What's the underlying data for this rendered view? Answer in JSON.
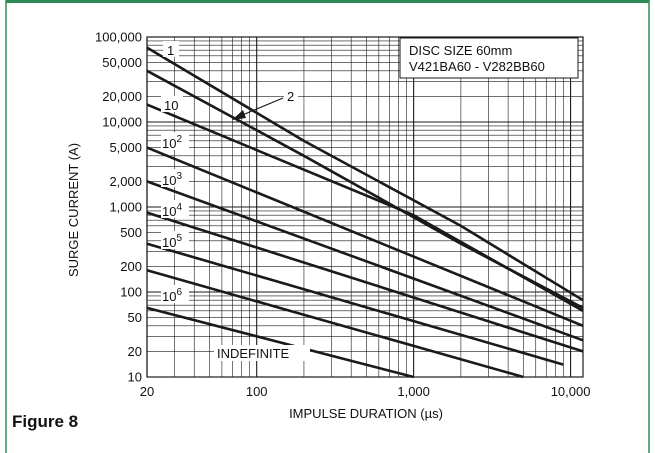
{
  "figure_label": "Figure 8",
  "colors": {
    "frame": "#2e8b57",
    "line": "#1a1a1a",
    "grid": "#1a1a1a"
  },
  "chart_data": {
    "type": "line",
    "title": "",
    "xlabel": "IMPULSE DURATION (µs)",
    "ylabel": "SURGE CURRENT (A)",
    "x_scale": "log",
    "y_scale": "log",
    "xlim": [
      20,
      12000
    ],
    "ylim": [
      10,
      100000
    ],
    "x_ticks": [
      {
        "value": 20,
        "label": "20"
      },
      {
        "value": 100,
        "label": "100"
      },
      {
        "value": 1000,
        "label": "1,000"
      },
      {
        "value": 10000,
        "label": "10,000"
      }
    ],
    "y_ticks": [
      {
        "value": 100000,
        "label": "100,000"
      },
      {
        "value": 50000,
        "label": "50,000"
      },
      {
        "value": 20000,
        "label": "20,000"
      },
      {
        "value": 10000,
        "label": "10,000"
      },
      {
        "value": 5000,
        "label": "5,000"
      },
      {
        "value": 2000,
        "label": "2,000"
      },
      {
        "value": 1000,
        "label": "1,000"
      },
      {
        "value": 500,
        "label": "500"
      },
      {
        "value": 200,
        "label": "200"
      },
      {
        "value": 100,
        "label": "100"
      },
      {
        "value": 50,
        "label": "50"
      },
      {
        "value": 20,
        "label": "20"
      },
      {
        "value": 10,
        "label": "10"
      }
    ],
    "grid": true,
    "legend_box": {
      "line1": "DISC SIZE 60mm",
      "line2": "V421BA60 - V282BB60",
      "position": "top-right"
    },
    "annotations": {
      "n1": "1",
      "n2": "2",
      "n10": "10",
      "p2_base": "10",
      "p2_exp": "2",
      "p3_base": "10",
      "p3_exp": "3",
      "p4_base": "10",
      "p4_exp": "4",
      "p5_base": "10",
      "p5_exp": "5",
      "p6_base": "10",
      "p6_exp": "6",
      "indefinite": "INDEFINITE"
    },
    "series": [
      {
        "points": [
          [
            20,
            75000
          ],
          [
            200,
            6000
          ],
          [
            2000,
            600
          ],
          [
            12000,
            80
          ]
        ]
      },
      {
        "points": [
          [
            20,
            40000
          ],
          [
            200,
            4000
          ],
          [
            2000,
            370
          ],
          [
            12000,
            65
          ]
        ]
      },
      {
        "points": [
          [
            20,
            16000
          ],
          [
            1000,
            800
          ],
          [
            12000,
            60
          ]
        ]
      },
      {
        "points": [
          [
            20,
            5000
          ],
          [
            12000,
            40
          ]
        ]
      },
      {
        "points": [
          [
            20,
            2000
          ],
          [
            12000,
            27
          ]
        ]
      },
      {
        "points": [
          [
            20,
            860
          ],
          [
            12000,
            20
          ]
        ]
      },
      {
        "points": [
          [
            20,
            370
          ],
          [
            9000,
            14
          ]
        ]
      },
      {
        "points": [
          [
            20,
            180
          ],
          [
            5000,
            10
          ]
        ]
      },
      {
        "points": [
          [
            20,
            65
          ],
          [
            1000,
            10
          ]
        ]
      }
    ]
  }
}
